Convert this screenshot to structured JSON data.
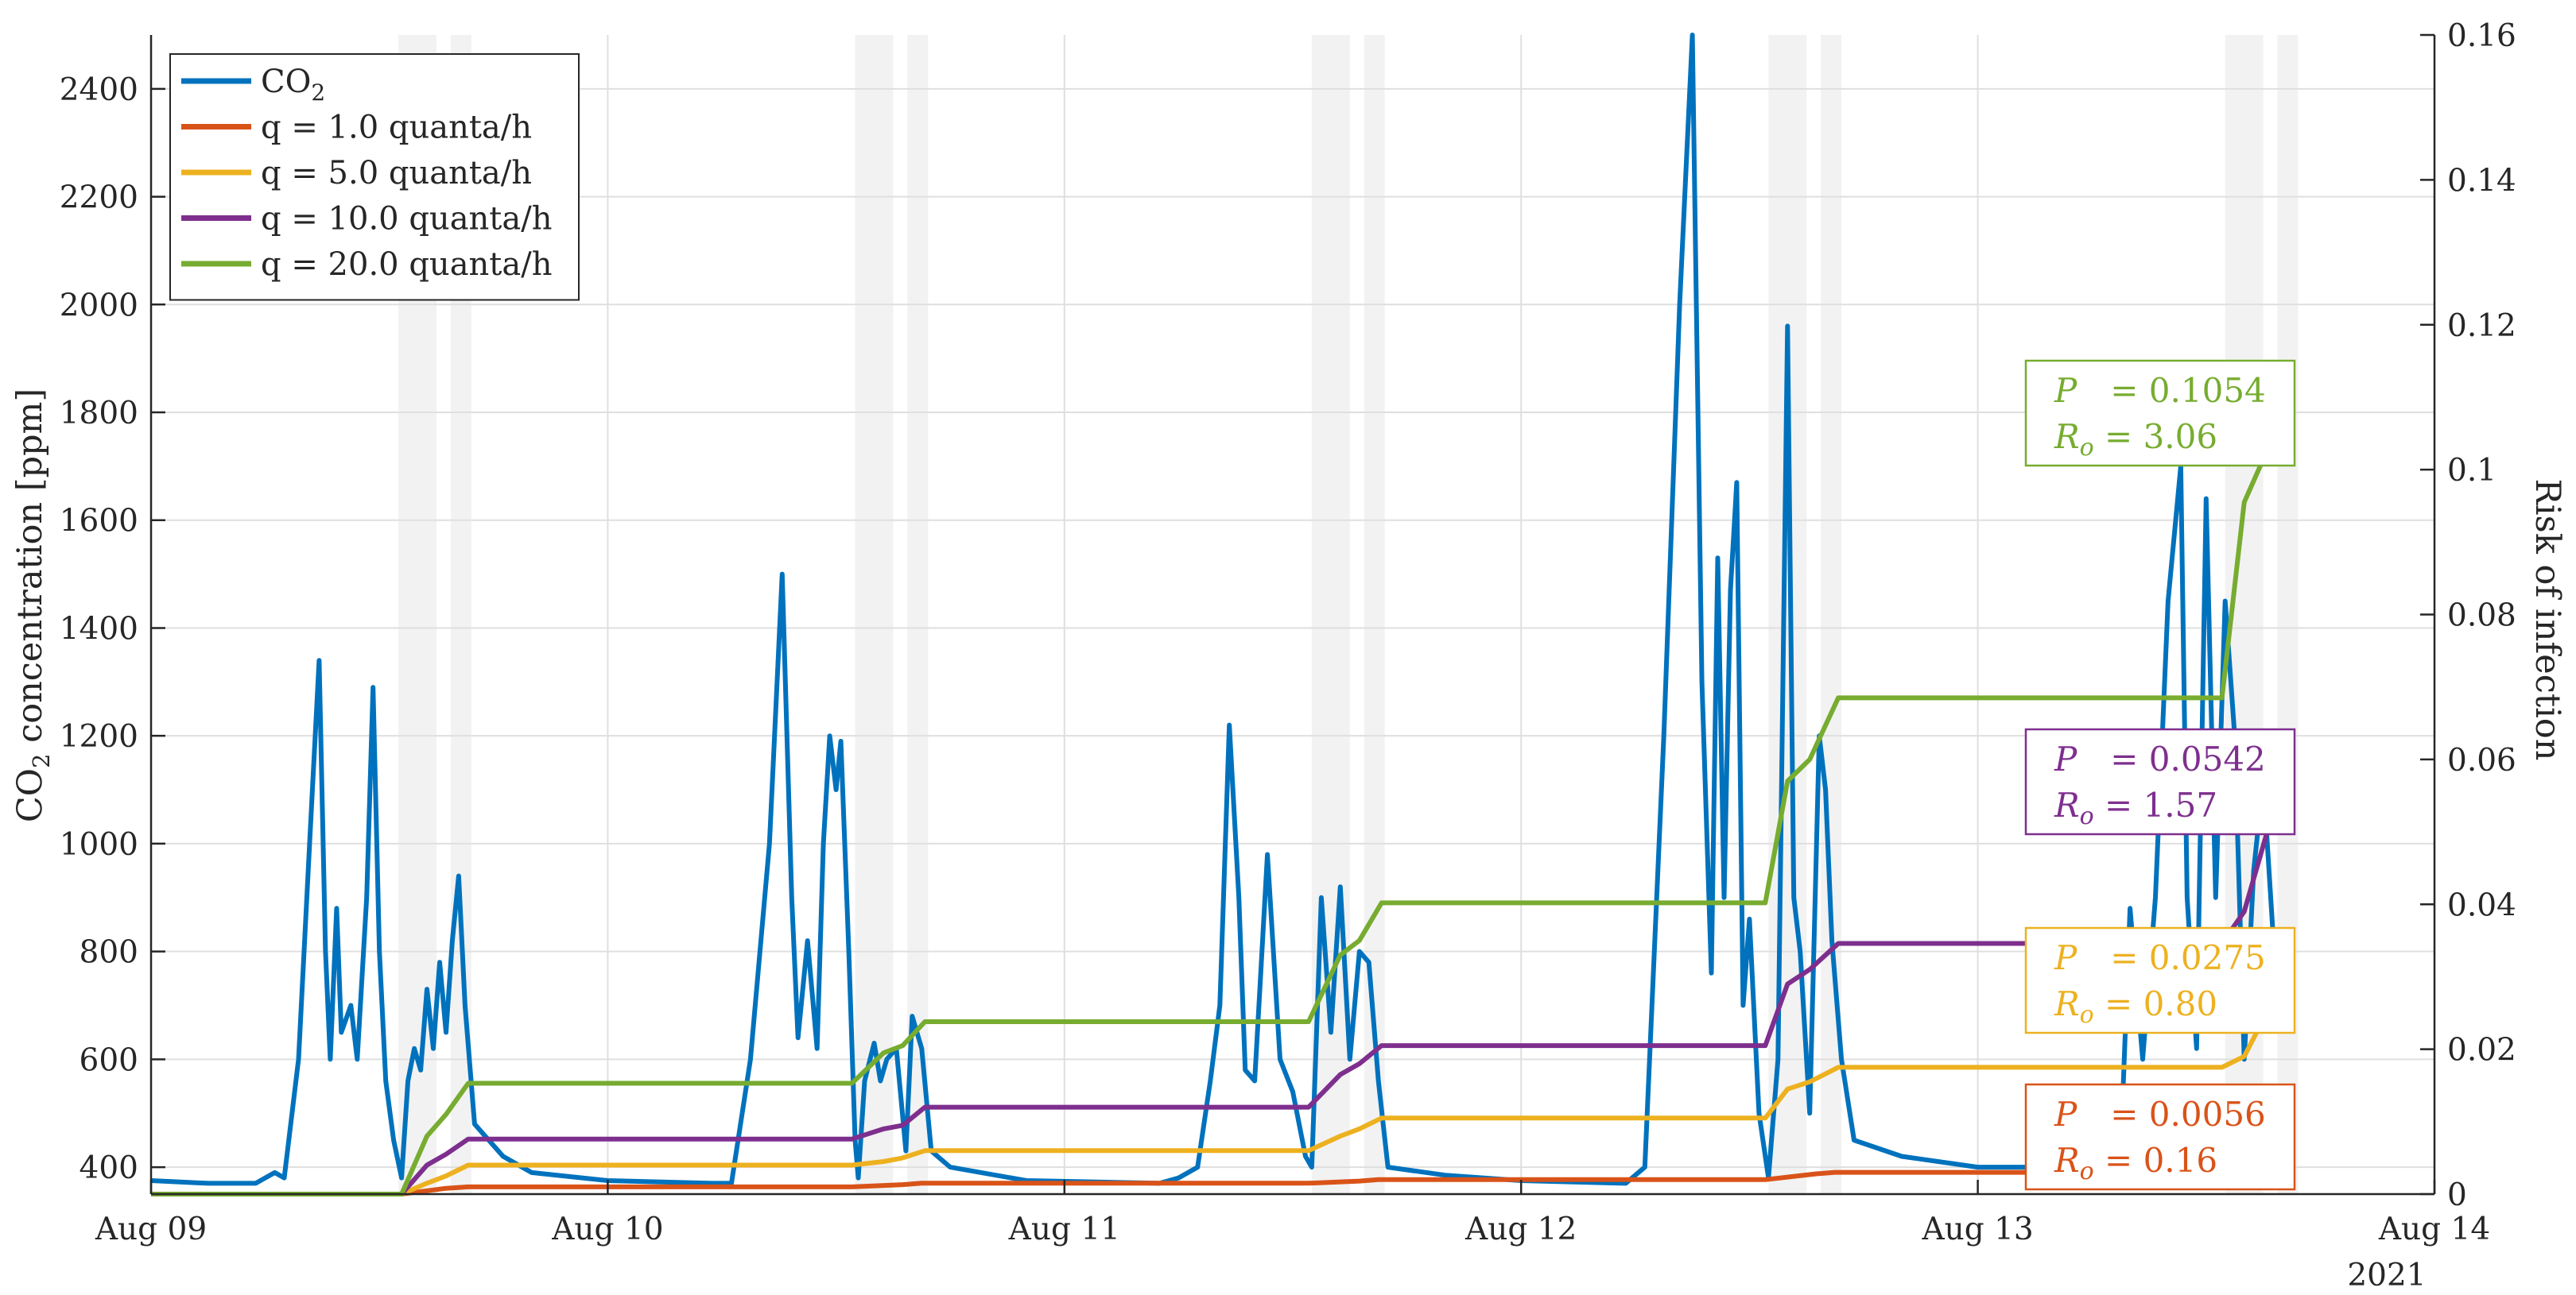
{
  "chart_data": {
    "type": "line",
    "xlabel": "",
    "ylabel_left": "CO₂ concentration [ppm]",
    "ylabel_right": "Risk of infection",
    "x_axis": {
      "range_days": [
        "2021-08-09",
        "2021-08-14"
      ],
      "tick_labels": [
        "Aug 09",
        "Aug 10",
        "Aug 11",
        "Aug 12",
        "Aug 13",
        "Aug 14"
      ],
      "year_label": "2021"
    },
    "y_left": {
      "range": [
        350,
        2500
      ],
      "ticks": [
        400,
        600,
        800,
        1000,
        1200,
        1400,
        1600,
        1800,
        2000,
        2200,
        2400
      ]
    },
    "y_right": {
      "range": [
        0,
        0.16
      ],
      "ticks": [
        "0",
        "0.02",
        "0.04",
        "0.06",
        "0.08",
        "0.1",
        "0.12",
        "0.14",
        "0.16"
      ]
    },
    "grid": true,
    "legend_position": "top-left",
    "shaded_periods": [
      [
        "2021-08-09 13:00",
        "2021-08-09 15:00"
      ],
      [
        "2021-08-09 15:45",
        "2021-08-09 16:50"
      ],
      [
        "2021-08-10 13:00",
        "2021-08-10 15:00"
      ],
      [
        "2021-08-10 15:45",
        "2021-08-10 16:50"
      ],
      [
        "2021-08-11 13:00",
        "2021-08-11 15:00"
      ],
      [
        "2021-08-11 15:45",
        "2021-08-11 16:50"
      ],
      [
        "2021-08-12 13:00",
        "2021-08-12 15:00"
      ],
      [
        "2021-08-12 15:45",
        "2021-08-12 16:50"
      ],
      [
        "2021-08-13 13:00",
        "2021-08-13 15:00"
      ],
      [
        "2021-08-13 15:45",
        "2021-08-13 16:50"
      ]
    ],
    "series": [
      {
        "name": "CO₂",
        "axis": "left",
        "color": "#0072BD",
        "points": [
          [
            "2021-08-09 00:00",
            375
          ],
          [
            "2021-08-09 03:00",
            370
          ],
          [
            "2021-08-09 05:30",
            370
          ],
          [
            "2021-08-09 06:30",
            390
          ],
          [
            "2021-08-09 07:00",
            380
          ],
          [
            "2021-08-09 07:45",
            600
          ],
          [
            "2021-08-09 08:20",
            1000
          ],
          [
            "2021-08-09 08:50",
            1340
          ],
          [
            "2021-08-09 09:10",
            800
          ],
          [
            "2021-08-09 09:25",
            600
          ],
          [
            "2021-08-09 09:45",
            880
          ],
          [
            "2021-08-09 10:00",
            650
          ],
          [
            "2021-08-09 10:30",
            700
          ],
          [
            "2021-08-09 10:50",
            600
          ],
          [
            "2021-08-09 11:20",
            900
          ],
          [
            "2021-08-09 11:40",
            1290
          ],
          [
            "2021-08-09 12:00",
            800
          ],
          [
            "2021-08-09 12:20",
            560
          ],
          [
            "2021-08-09 12:45",
            450
          ],
          [
            "2021-08-09 13:10",
            380
          ],
          [
            "2021-08-09 13:30",
            560
          ],
          [
            "2021-08-09 13:50",
            620
          ],
          [
            "2021-08-09 14:10",
            580
          ],
          [
            "2021-08-09 14:30",
            730
          ],
          [
            "2021-08-09 14:50",
            620
          ],
          [
            "2021-08-09 15:10",
            780
          ],
          [
            "2021-08-09 15:30",
            650
          ],
          [
            "2021-08-09 15:50",
            820
          ],
          [
            "2021-08-09 16:10",
            940
          ],
          [
            "2021-08-09 16:30",
            700
          ],
          [
            "2021-08-09 17:00",
            480
          ],
          [
            "2021-08-09 17:30",
            460
          ],
          [
            "2021-08-09 18:30",
            420
          ],
          [
            "2021-08-09 20:00",
            390
          ],
          [
            "2021-08-10 00:00",
            375
          ],
          [
            "2021-08-10 05:30",
            370
          ],
          [
            "2021-08-10 06:30",
            370
          ],
          [
            "2021-08-10 07:30",
            600
          ],
          [
            "2021-08-10 08:30",
            1000
          ],
          [
            "2021-08-10 09:10",
            1500
          ],
          [
            "2021-08-10 09:40",
            900
          ],
          [
            "2021-08-10 10:00",
            640
          ],
          [
            "2021-08-10 10:30",
            820
          ],
          [
            "2021-08-10 11:00",
            620
          ],
          [
            "2021-08-10 11:20",
            1000
          ],
          [
            "2021-08-10 11:40",
            1200
          ],
          [
            "2021-08-10 12:00",
            1100
          ],
          [
            "2021-08-10 12:15",
            1190
          ],
          [
            "2021-08-10 12:40",
            800
          ],
          [
            "2021-08-10 13:00",
            450
          ],
          [
            "2021-08-10 13:10",
            380
          ],
          [
            "2021-08-10 13:30",
            560
          ],
          [
            "2021-08-10 14:00",
            630
          ],
          [
            "2021-08-10 14:20",
            560
          ],
          [
            "2021-08-10 14:40",
            600
          ],
          [
            "2021-08-10 15:10",
            620
          ],
          [
            "2021-08-10 15:40",
            430
          ],
          [
            "2021-08-10 16:00",
            680
          ],
          [
            "2021-08-10 16:30",
            620
          ],
          [
            "2021-08-10 17:00",
            430
          ],
          [
            "2021-08-10 18:00",
            400
          ],
          [
            "2021-08-10 22:00",
            375
          ],
          [
            "2021-08-11 05:00",
            370
          ],
          [
            "2021-08-11 06:00",
            380
          ],
          [
            "2021-08-11 07:00",
            400
          ],
          [
            "2021-08-11 07:40",
            560
          ],
          [
            "2021-08-11 08:10",
            700
          ],
          [
            "2021-08-11 08:40",
            1220
          ],
          [
            "2021-08-11 09:10",
            900
          ],
          [
            "2021-08-11 09:30",
            580
          ],
          [
            "2021-08-11 10:00",
            560
          ],
          [
            "2021-08-11 10:40",
            980
          ],
          [
            "2021-08-11 11:20",
            600
          ],
          [
            "2021-08-11 12:00",
            540
          ],
          [
            "2021-08-11 12:40",
            420
          ],
          [
            "2021-08-11 13:00",
            400
          ],
          [
            "2021-08-11 13:30",
            900
          ],
          [
            "2021-08-11 14:00",
            650
          ],
          [
            "2021-08-11 14:30",
            920
          ],
          [
            "2021-08-11 15:00",
            600
          ],
          [
            "2021-08-11 15:30",
            800
          ],
          [
            "2021-08-11 16:00",
            780
          ],
          [
            "2021-08-11 16:30",
            560
          ],
          [
            "2021-08-11 17:00",
            400
          ],
          [
            "2021-08-11 20:00",
            385
          ],
          [
            "2021-08-12 00:00",
            375
          ],
          [
            "2021-08-12 05:30",
            370
          ],
          [
            "2021-08-12 06:30",
            400
          ],
          [
            "2021-08-12 07:30",
            1200
          ],
          [
            "2021-08-12 08:20",
            2000
          ],
          [
            "2021-08-12 09:00",
            2500
          ],
          [
            "2021-08-12 09:30",
            1300
          ],
          [
            "2021-08-12 10:00",
            760
          ],
          [
            "2021-08-12 10:20",
            1530
          ],
          [
            "2021-08-12 10:40",
            900
          ],
          [
            "2021-08-12 11:00",
            1470
          ],
          [
            "2021-08-12 11:20",
            1670
          ],
          [
            "2021-08-12 11:40",
            700
          ],
          [
            "2021-08-12 12:00",
            860
          ],
          [
            "2021-08-12 12:30",
            500
          ],
          [
            "2021-08-12 13:00",
            380
          ],
          [
            "2021-08-12 13:30",
            600
          ],
          [
            "2021-08-12 14:00",
            1960
          ],
          [
            "2021-08-12 14:20",
            900
          ],
          [
            "2021-08-12 14:40",
            800
          ],
          [
            "2021-08-12 15:10",
            500
          ],
          [
            "2021-08-12 15:40",
            1200
          ],
          [
            "2021-08-12 16:00",
            1100
          ],
          [
            "2021-08-12 16:20",
            820
          ],
          [
            "2021-08-12 16:50",
            600
          ],
          [
            "2021-08-12 17:30",
            450
          ],
          [
            "2021-08-12 20:00",
            420
          ],
          [
            "2021-08-13 00:00",
            400
          ],
          [
            "2021-08-13 05:00",
            400
          ],
          [
            "2021-08-13 06:30",
            400
          ],
          [
            "2021-08-13 07:30",
            420
          ],
          [
            "2021-08-13 08:00",
            880
          ],
          [
            "2021-08-13 08:40",
            600
          ],
          [
            "2021-08-13 09:20",
            900
          ],
          [
            "2021-08-13 10:00",
            1450
          ],
          [
            "2021-08-13 10:40",
            1700
          ],
          [
            "2021-08-13 11:00",
            900
          ],
          [
            "2021-08-13 11:30",
            620
          ],
          [
            "2021-08-13 12:00",
            1640
          ],
          [
            "2021-08-13 12:30",
            900
          ],
          [
            "2021-08-13 13:00",
            1450
          ],
          [
            "2021-08-13 13:30",
            1200
          ],
          [
            "2021-08-13 14:00",
            600
          ],
          [
            "2021-08-13 14:30",
            950
          ],
          [
            "2021-08-13 15:00",
            1120
          ],
          [
            "2021-08-13 15:30",
            840
          ]
        ]
      },
      {
        "name": "q = 1.0 quanta/h",
        "axis": "right",
        "color": "#D95319",
        "points": [
          [
            "2021-08-09 00:00",
            0
          ],
          [
            "2021-08-09 13:10",
            0
          ],
          [
            "2021-08-09 15:30",
            0.0008
          ],
          [
            "2021-08-09 16:40",
            0.001
          ],
          [
            "2021-08-10 12:50",
            0.001
          ],
          [
            "2021-08-10 15:30",
            0.0013
          ],
          [
            "2021-08-10 16:30",
            0.0015
          ],
          [
            "2021-08-11 12:50",
            0.0015
          ],
          [
            "2021-08-11 15:30",
            0.0018
          ],
          [
            "2021-08-11 16:30",
            0.002
          ],
          [
            "2021-08-12 12:50",
            0.002
          ],
          [
            "2021-08-12 15:30",
            0.0028
          ],
          [
            "2021-08-12 16:30",
            0.003
          ],
          [
            "2021-08-13 12:50",
            0.003
          ],
          [
            "2021-08-13 15:40",
            0.0056
          ]
        ]
      },
      {
        "name": "q = 5.0 quanta/h",
        "axis": "right",
        "color": "#EDB120",
        "points": [
          [
            "2021-08-09 00:00",
            0
          ],
          [
            "2021-08-09 13:10",
            0
          ],
          [
            "2021-08-09 14:30",
            0.0015
          ],
          [
            "2021-08-09 15:30",
            0.0025
          ],
          [
            "2021-08-09 16:40",
            0.004
          ],
          [
            "2021-08-10 12:50",
            0.004
          ],
          [
            "2021-08-10 14:30",
            0.0045
          ],
          [
            "2021-08-10 15:30",
            0.005
          ],
          [
            "2021-08-10 16:40",
            0.006
          ],
          [
            "2021-08-11 12:50",
            0.006
          ],
          [
            "2021-08-11 14:30",
            0.008
          ],
          [
            "2021-08-11 15:30",
            0.009
          ],
          [
            "2021-08-11 16:40",
            0.0105
          ],
          [
            "2021-08-12 12:50",
            0.0105
          ],
          [
            "2021-08-12 14:00",
            0.0145
          ],
          [
            "2021-08-12 15:10",
            0.0155
          ],
          [
            "2021-08-12 16:40",
            0.0175
          ],
          [
            "2021-08-13 12:50",
            0.0175
          ],
          [
            "2021-08-13 14:00",
            0.019
          ],
          [
            "2021-08-13 15:40",
            0.0275
          ]
        ]
      },
      {
        "name": "q = 10.0 quanta/h",
        "axis": "right",
        "color": "#7E2F8E",
        "points": [
          [
            "2021-08-09 00:00",
            0
          ],
          [
            "2021-08-09 13:10",
            0
          ],
          [
            "2021-08-09 14:30",
            0.004
          ],
          [
            "2021-08-09 15:30",
            0.0055
          ],
          [
            "2021-08-09 16:40",
            0.0076
          ],
          [
            "2021-08-10 12:50",
            0.0076
          ],
          [
            "2021-08-10 14:30",
            0.009
          ],
          [
            "2021-08-10 15:30",
            0.0095
          ],
          [
            "2021-08-10 16:40",
            0.012
          ],
          [
            "2021-08-11 12:50",
            0.012
          ],
          [
            "2021-08-11 14:30",
            0.0165
          ],
          [
            "2021-08-11 15:30",
            0.018
          ],
          [
            "2021-08-11 16:40",
            0.0205
          ],
          [
            "2021-08-12 12:50",
            0.0205
          ],
          [
            "2021-08-12 14:00",
            0.029
          ],
          [
            "2021-08-12 15:10",
            0.031
          ],
          [
            "2021-08-12 16:40",
            0.0346
          ],
          [
            "2021-08-13 12:50",
            0.0346
          ],
          [
            "2021-08-13 14:00",
            0.039
          ],
          [
            "2021-08-13 15:40",
            0.0542
          ]
        ]
      },
      {
        "name": "q = 20.0 quanta/h",
        "axis": "right",
        "color": "#77AC30",
        "points": [
          [
            "2021-08-09 00:00",
            0
          ],
          [
            "2021-08-09 13:10",
            0
          ],
          [
            "2021-08-09 14:30",
            0.008
          ],
          [
            "2021-08-09 15:30",
            0.011
          ],
          [
            "2021-08-09 16:40",
            0.0153
          ],
          [
            "2021-08-10 12:50",
            0.0153
          ],
          [
            "2021-08-10 14:30",
            0.0195
          ],
          [
            "2021-08-10 15:30",
            0.0205
          ],
          [
            "2021-08-10 16:40",
            0.0238
          ],
          [
            "2021-08-11 12:50",
            0.0238
          ],
          [
            "2021-08-11 14:30",
            0.033
          ],
          [
            "2021-08-11 15:30",
            0.035
          ],
          [
            "2021-08-11 16:40",
            0.0402
          ],
          [
            "2021-08-12 12:50",
            0.0402
          ],
          [
            "2021-08-12 14:00",
            0.057
          ],
          [
            "2021-08-12 15:10",
            0.06
          ],
          [
            "2021-08-12 16:40",
            0.0685
          ],
          [
            "2021-08-13 12:50",
            0.0685
          ],
          [
            "2021-08-13 14:00",
            0.0955
          ],
          [
            "2021-08-13 15:40",
            0.1054
          ]
        ]
      }
    ],
    "legend": [
      {
        "label": "CO",
        "sub": "2",
        "color": "#0072BD"
      },
      {
        "label": "q = 1.0 quanta/h",
        "color": "#D95319"
      },
      {
        "label": "q = 5.0 quanta/h",
        "color": "#EDB120"
      },
      {
        "label": "q = 10.0 quanta/h",
        "color": "#7E2F8E"
      },
      {
        "label": "q = 20.0 quanta/h",
        "color": "#77AC30"
      }
    ],
    "annotations": [
      {
        "series": "q = 20.0 quanta/h",
        "color": "#77AC30",
        "P": "0.1054",
        "Ro": "3.06"
      },
      {
        "series": "q = 10.0 quanta/h",
        "color": "#7E2F8E",
        "P": "0.0542",
        "Ro": "1.57"
      },
      {
        "series": "q = 5.0 quanta/h",
        "color": "#EDB120",
        "P": "0.0275",
        "Ro": "0.80"
      },
      {
        "series": "q = 1.0 quanta/h",
        "color": "#D95319",
        "P": "0.0056",
        "Ro": "0.16"
      }
    ]
  }
}
